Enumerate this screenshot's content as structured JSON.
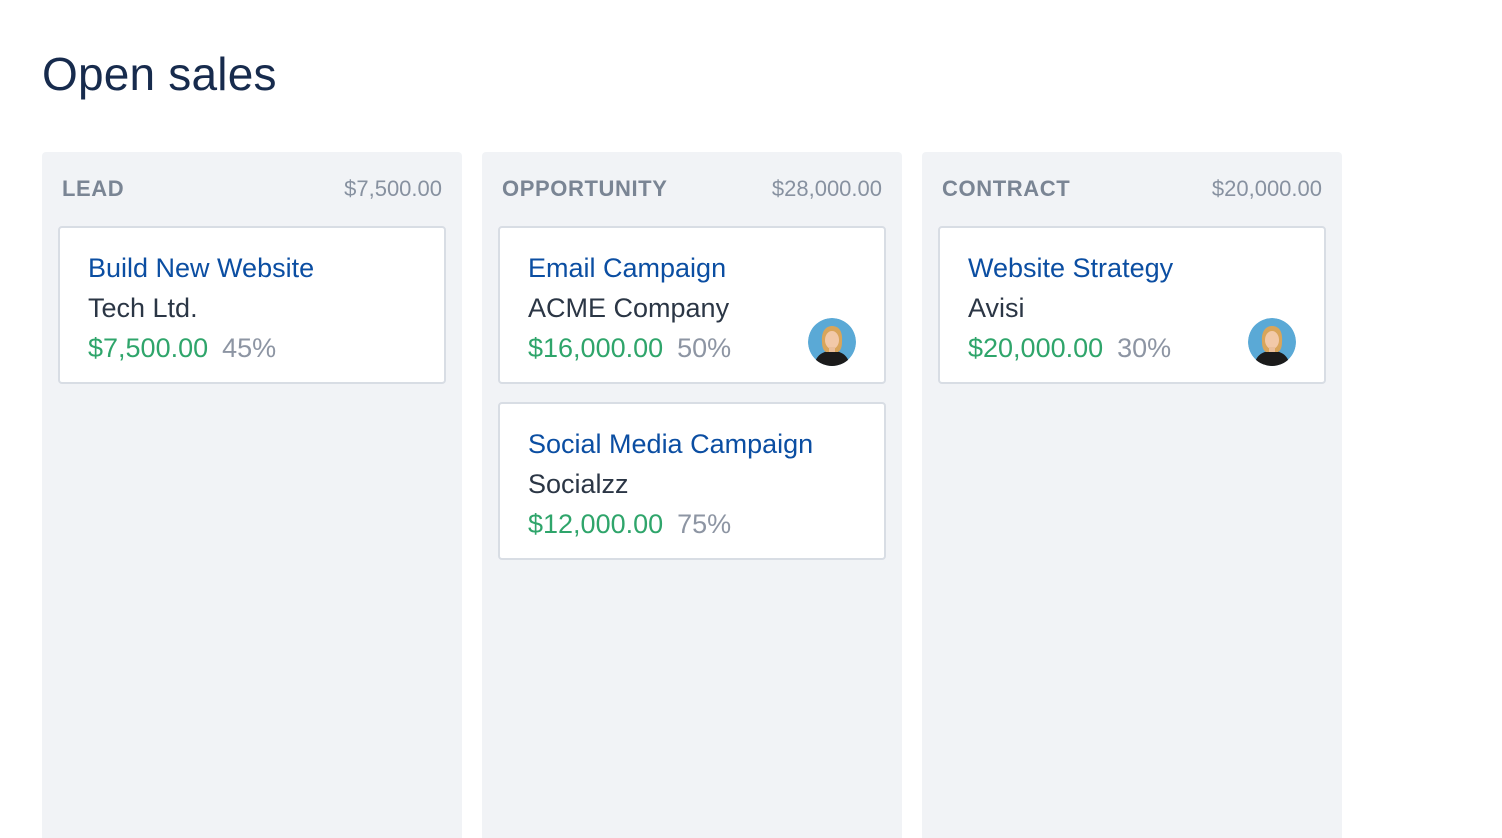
{
  "page": {
    "title": "Open sales"
  },
  "columns": [
    {
      "name": "LEAD",
      "total": "$7,500.00",
      "cards": [
        {
          "title": "Build New Website",
          "company": "Tech Ltd.",
          "amount": "$7,500.00",
          "probability": "45%",
          "avatar": false
        }
      ]
    },
    {
      "name": "OPPORTUNITY",
      "total": "$28,000.00",
      "cards": [
        {
          "title": "Email Campaign",
          "company": "ACME Company",
          "amount": "$16,000.00",
          "probability": "50%",
          "avatar": true
        },
        {
          "title": "Social Media Campaign",
          "company": "Socialzz",
          "amount": "$12,000.00",
          "probability": "75%",
          "avatar": false
        }
      ]
    },
    {
      "name": "CONTRACT",
      "total": "$20,000.00",
      "cards": [
        {
          "title": "Website Strategy",
          "company": "Avisi",
          "amount": "$20,000.00",
          "probability": "30%",
          "avatar": true
        }
      ]
    }
  ],
  "colors": {
    "title_link": "#0b4ea2",
    "amount": "#2fa56b",
    "column_bg": "#f1f3f6",
    "avatar_bg": "#5aa9d6"
  }
}
